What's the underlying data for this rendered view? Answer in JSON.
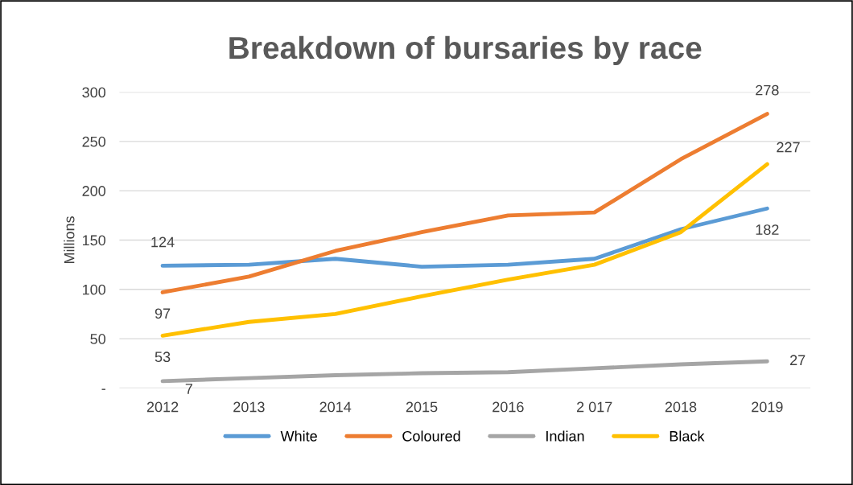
{
  "chart_data": {
    "type": "line",
    "title": "Breakdown of bursaries by race",
    "ylabel": "Millions",
    "categories": [
      "2012",
      "2013",
      "2014",
      "2015",
      "2016",
      "2 017",
      "2018",
      "2019"
    ],
    "series": [
      {
        "name": "White",
        "color": "#5b9bd5",
        "values": [
          124,
          125,
          131,
          123,
          125,
          131,
          161,
          182
        ],
        "value_labels": [
          "124",
          null,
          null,
          null,
          null,
          null,
          null,
          "182"
        ]
      },
      {
        "name": "Coloured",
        "color": "#ed7d31",
        "values": [
          97,
          113,
          139,
          158,
          175,
          178,
          232,
          278
        ],
        "value_labels": [
          "97",
          null,
          null,
          null,
          null,
          null,
          null,
          "278"
        ]
      },
      {
        "name": "Indian",
        "color": "#a5a5a5",
        "values": [
          7,
          10,
          13,
          15,
          16,
          20,
          24,
          27
        ],
        "value_labels": [
          "7",
          null,
          null,
          null,
          null,
          null,
          null,
          "27"
        ]
      },
      {
        "name": "Black",
        "color": "#ffc000",
        "values": [
          53,
          67,
          75,
          93,
          110,
          125,
          158,
          227
        ],
        "value_labels": [
          "53",
          null,
          null,
          null,
          null,
          null,
          null,
          "227"
        ]
      }
    ],
    "ylim": [
      0,
      300
    ],
    "yticks": [
      {
        "value": 0,
        "label": "-"
      },
      50,
      100,
      150,
      200,
      250,
      300
    ],
    "grid": "y",
    "legend": "bottom",
    "marker": "none",
    "line_style": "solid"
  }
}
